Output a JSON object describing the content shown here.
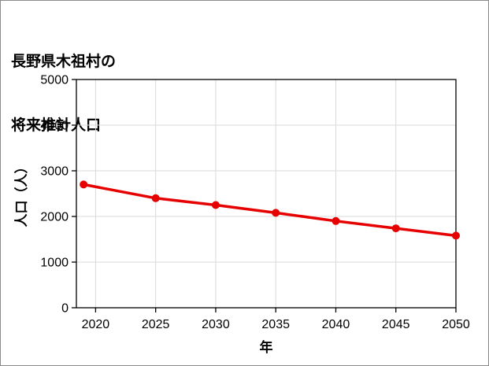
{
  "title": {
    "line1": "長野県木祖村の",
    "line2": "将来推計人口"
  },
  "chart_data": {
    "type": "line",
    "title": "長野県木祖村の将来推計人口",
    "xlabel": "年",
    "ylabel": "人口（人）",
    "x": [
      2019,
      2025,
      2030,
      2035,
      2040,
      2045,
      2050
    ],
    "series": [
      {
        "name": "将来推計人口",
        "values": [
          2700,
          2400,
          2250,
          2080,
          1900,
          1740,
          1580
        ]
      }
    ],
    "xlim": [
      2018.4,
      2050
    ],
    "ylim": [
      0,
      5000
    ],
    "x_ticks": [
      2020,
      2025,
      2030,
      2035,
      2040,
      2045,
      2050
    ],
    "y_ticks": [
      0,
      1000,
      2000,
      3000,
      4000,
      5000
    ],
    "grid": true,
    "legend": "none",
    "line_color": "#e60000",
    "marker": "circle",
    "axis_color": "#000000",
    "grid_color": "#d9d9d9"
  }
}
